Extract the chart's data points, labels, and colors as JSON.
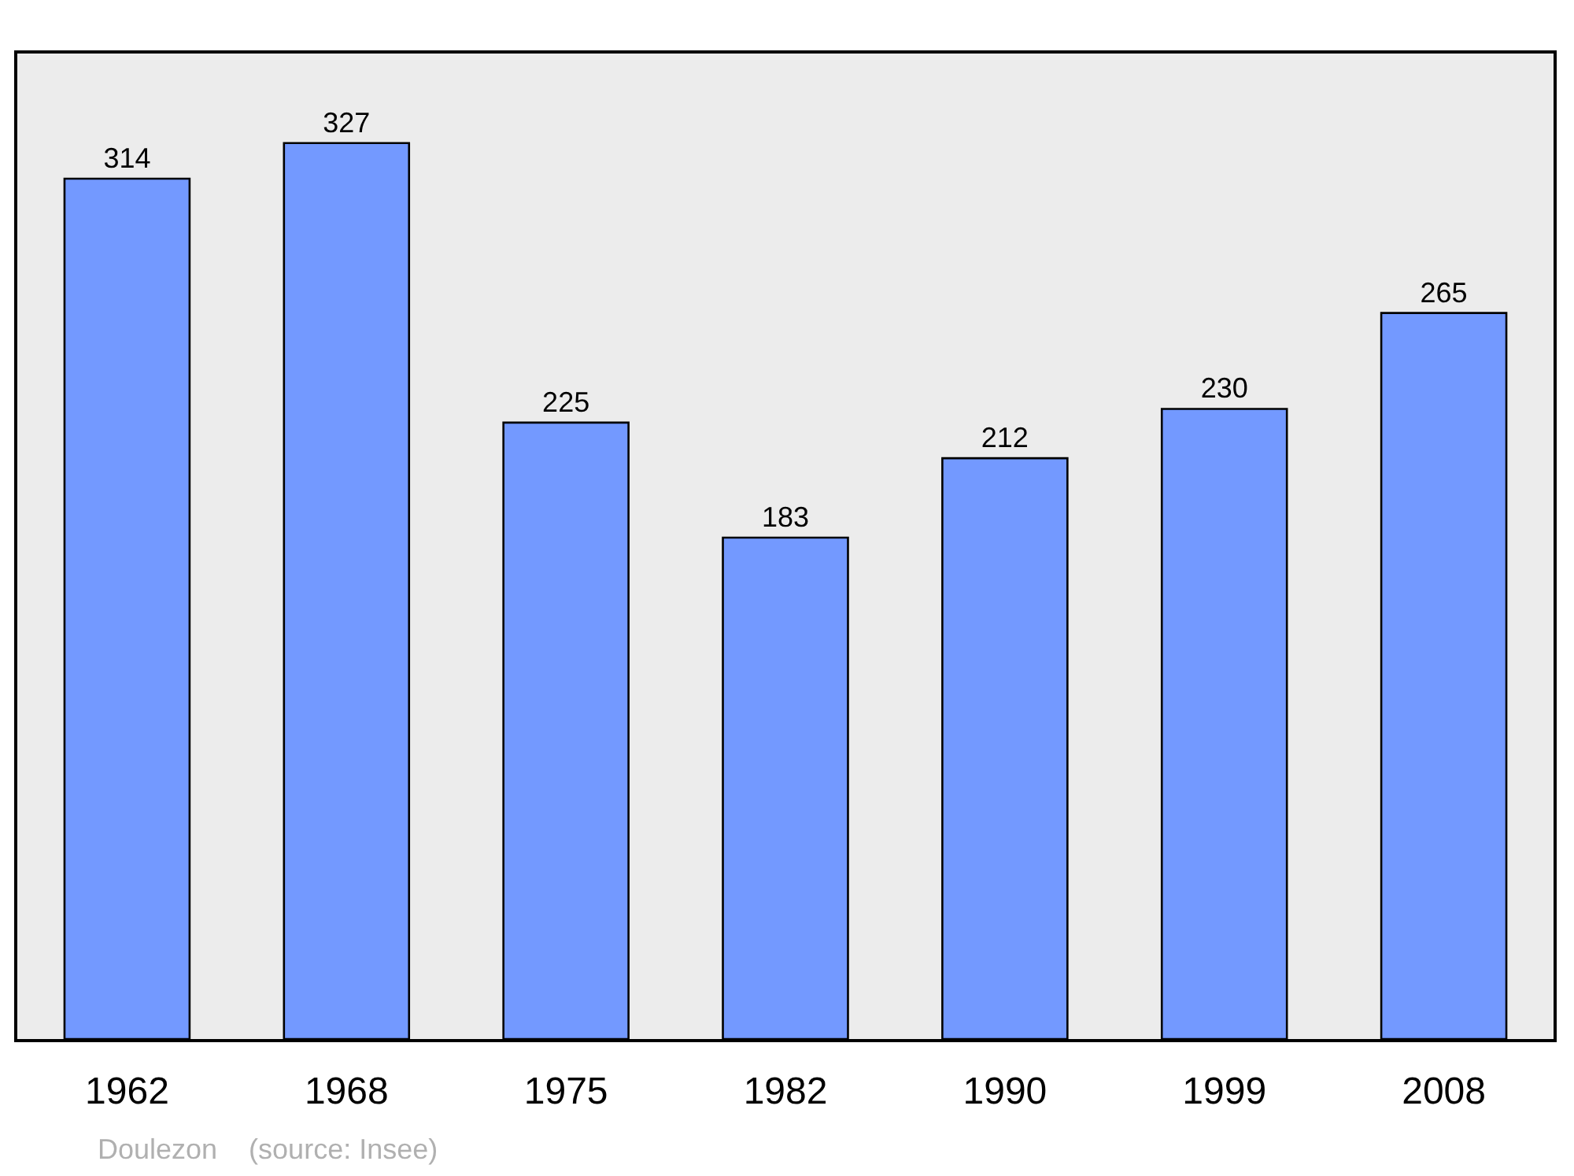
{
  "chart_data": {
    "type": "bar",
    "categories": [
      "1962",
      "1968",
      "1975",
      "1982",
      "1990",
      "1999",
      "2008"
    ],
    "values": [
      314,
      327,
      225,
      183,
      212,
      230,
      265
    ],
    "color": "#7399ff",
    "data_labels": true,
    "grid": false,
    "annotations": [
      "Doulezon    (source: Insee)"
    ]
  }
}
